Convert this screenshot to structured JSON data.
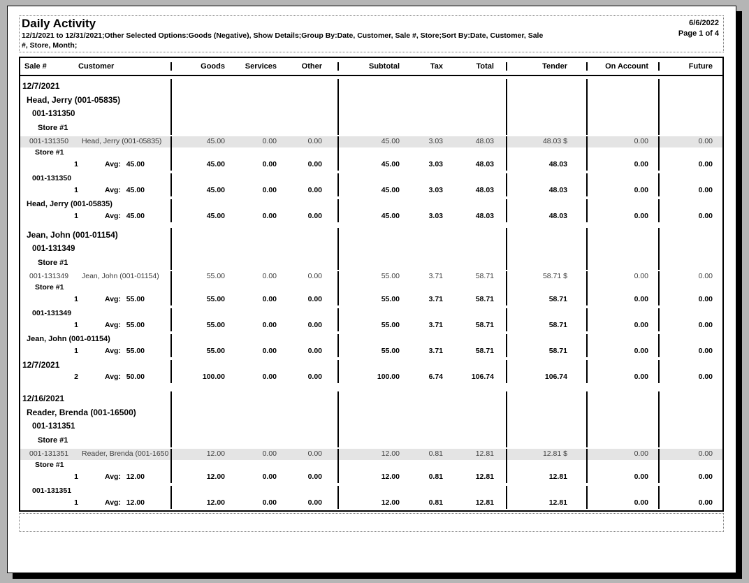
{
  "report": {
    "title": "Daily Activity",
    "date": "6/6/2022",
    "page_label": "Page 1 of 4",
    "subtitle_line1": "12/1/2021 to 12/31/2021;Other Selected Options:Goods (Negative), Show Details;Group By:Date, Customer, Sale #, Store;Sort By:Date, Customer, Sale",
    "subtitle_line2": "#, Store, Month;"
  },
  "table": {
    "headers": [
      "Sale #",
      "Customer",
      "Goods",
      "Services",
      "Other",
      "Subtotal",
      "Tax",
      "Total",
      "Tender",
      "On Account",
      "Future"
    ],
    "avg_label": "Avg:",
    "rows": [
      {
        "type": "group",
        "indent": 1,
        "label": "12/7/2021"
      },
      {
        "type": "group",
        "indent": 2,
        "label": "Head, Jerry (001-05835)"
      },
      {
        "type": "group",
        "indent": 3,
        "label": "001-131350"
      },
      {
        "type": "group",
        "indent": 4,
        "label": "Store #1"
      },
      {
        "type": "detail",
        "highlight": true,
        "sale": "001-131350",
        "customer": "Head, Jerry (001-05835)",
        "values": [
          "45.00",
          "0.00",
          "0.00",
          "45.00",
          "3.03",
          "48.03",
          "48.03 $",
          "0.00",
          "0.00"
        ]
      },
      {
        "type": "sublabel",
        "indent": 4,
        "label": "Store #1"
      },
      {
        "type": "summary",
        "count": "1",
        "avg": "45.00",
        "values": [
          "45.00",
          "0.00",
          "0.00",
          "45.00",
          "3.03",
          "48.03",
          "48.03",
          "0.00",
          "0.00"
        ]
      },
      {
        "type": "sublabel",
        "indent": 3,
        "label": "001-131350"
      },
      {
        "type": "summary",
        "count": "1",
        "avg": "45.00",
        "values": [
          "45.00",
          "0.00",
          "0.00",
          "45.00",
          "3.03",
          "48.03",
          "48.03",
          "0.00",
          "0.00"
        ]
      },
      {
        "type": "sublabel",
        "indent": 2,
        "label": "Head, Jerry (001-05835)"
      },
      {
        "type": "summary",
        "count": "1",
        "avg": "45.00",
        "values": [
          "45.00",
          "0.00",
          "0.00",
          "45.00",
          "3.03",
          "48.03",
          "48.03",
          "0.00",
          "0.00"
        ]
      },
      {
        "type": "group",
        "indent": 2,
        "label": "Jean, John (001-01154)"
      },
      {
        "type": "group",
        "indent": 3,
        "label": "001-131349"
      },
      {
        "type": "group",
        "indent": 4,
        "label": "Store #1"
      },
      {
        "type": "detail",
        "highlight": false,
        "sale": "001-131349",
        "customer": "Jean, John (001-01154)",
        "values": [
          "55.00",
          "0.00",
          "0.00",
          "55.00",
          "3.71",
          "58.71",
          "58.71 $",
          "0.00",
          "0.00"
        ]
      },
      {
        "type": "sublabel",
        "indent": 4,
        "label": "Store #1"
      },
      {
        "type": "summary",
        "count": "1",
        "avg": "55.00",
        "values": [
          "55.00",
          "0.00",
          "0.00",
          "55.00",
          "3.71",
          "58.71",
          "58.71",
          "0.00",
          "0.00"
        ]
      },
      {
        "type": "sublabel",
        "indent": 3,
        "label": "001-131349"
      },
      {
        "type": "summary",
        "count": "1",
        "avg": "55.00",
        "values": [
          "55.00",
          "0.00",
          "0.00",
          "55.00",
          "3.71",
          "58.71",
          "58.71",
          "0.00",
          "0.00"
        ]
      },
      {
        "type": "sublabel",
        "indent": 2,
        "label": "Jean, John (001-01154)"
      },
      {
        "type": "summary",
        "count": "1",
        "avg": "55.00",
        "values": [
          "55.00",
          "0.00",
          "0.00",
          "55.00",
          "3.71",
          "58.71",
          "58.71",
          "0.00",
          "0.00"
        ]
      },
      {
        "type": "sublabel",
        "indent": 1,
        "label": "12/7/2021"
      },
      {
        "type": "summary",
        "count": "2",
        "avg": "50.00",
        "values": [
          "100.00",
          "0.00",
          "0.00",
          "100.00",
          "6.74",
          "106.74",
          "106.74",
          "0.00",
          "0.00"
        ]
      },
      {
        "type": "group",
        "indent": 1,
        "label": "12/16/2021"
      },
      {
        "type": "group",
        "indent": 2,
        "label": "Reader, Brenda (001-16500)"
      },
      {
        "type": "group",
        "indent": 3,
        "label": "001-131351"
      },
      {
        "type": "group",
        "indent": 4,
        "label": "Store #1"
      },
      {
        "type": "detail",
        "highlight": true,
        "sale": "001-131351",
        "customer": "Reader, Brenda (001-1650",
        "values": [
          "12.00",
          "0.00",
          "0.00",
          "12.00",
          "0.81",
          "12.81",
          "12.81 $",
          "0.00",
          "0.00"
        ]
      },
      {
        "type": "sublabel",
        "indent": 4,
        "label": "Store #1"
      },
      {
        "type": "summary",
        "count": "1",
        "avg": "12.00",
        "values": [
          "12.00",
          "0.00",
          "0.00",
          "12.00",
          "0.81",
          "12.81",
          "12.81",
          "0.00",
          "0.00"
        ]
      },
      {
        "type": "sublabel",
        "indent": 3,
        "label": "001-131351"
      },
      {
        "type": "summary",
        "count": "1",
        "avg": "12.00",
        "values": [
          "12.00",
          "0.00",
          "0.00",
          "12.00",
          "0.81",
          "12.81",
          "12.81",
          "0.00",
          "0.00"
        ]
      }
    ]
  }
}
